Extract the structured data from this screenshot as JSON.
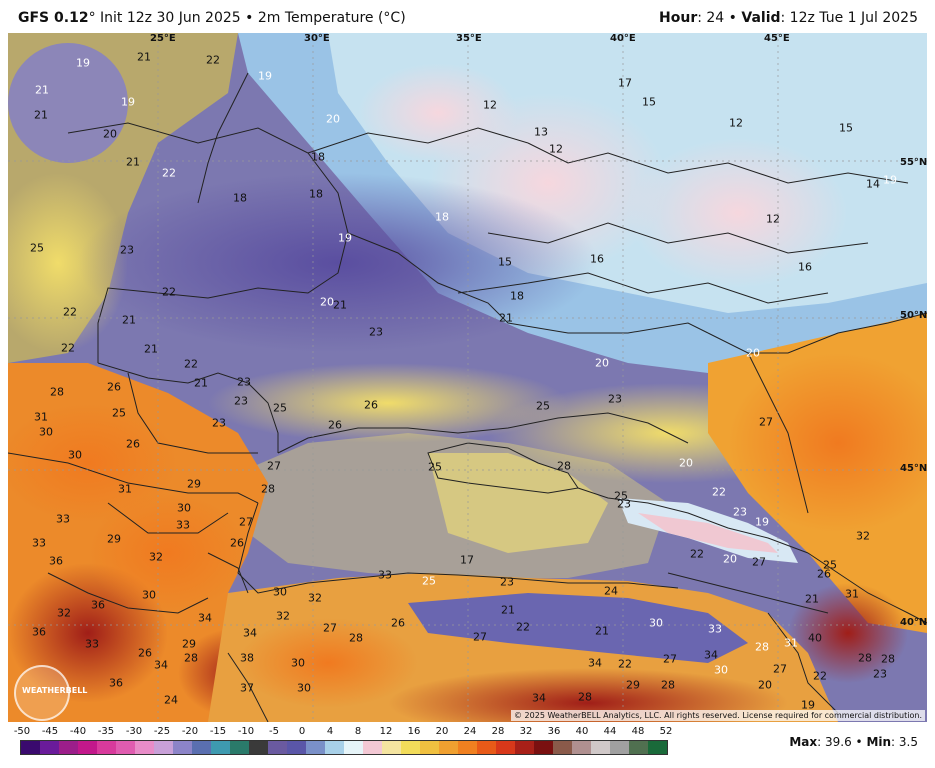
{
  "header": {
    "model": "GFS 0.12",
    "deg": "°",
    "init": " Init 12z 30 Jun 2025 • 2m Temperature (°C)",
    "hour_label": "Hour",
    "hour_value": ": 24 • ",
    "valid_label": "Valid",
    "valid_value": ": 12z Tue 1 Jul 2025"
  },
  "grid_labels": {
    "lon_25": "25°E",
    "lon_30": "30°E",
    "lon_35": "35°E",
    "lon_40": "40°E",
    "lon_45": "45°E",
    "lat_55": "55°N",
    "lat_50": "50°N",
    "lat_45": "45°N",
    "lat_40": "40°N"
  },
  "map": {
    "copyright": "© 2025 WeatherBELL Analytics, LLC. All rights reserved. License required for commercial distribution.",
    "logo_text": "WEATHERBELL"
  },
  "legend": {
    "ticks": [
      "-50",
      "-45",
      "-40",
      "-35",
      "-30",
      "-25",
      "-20",
      "-15",
      "-10",
      "-5",
      "0",
      "4",
      "8",
      "12",
      "16",
      "20",
      "24",
      "28",
      "32",
      "36",
      "40",
      "44",
      "48",
      "52"
    ],
    "colors": [
      "#3a0a6e",
      "#6a1b9a",
      "#9c1e8a",
      "#c2188b",
      "#d83a9c",
      "#e05cb0",
      "#e88cc8",
      "#c8a0d8",
      "#8c84c8",
      "#5a6fb0",
      "#3e9ab0",
      "#2a7a6a",
      "#3a3a3a",
      "#6a5aa0",
      "#5a56a8",
      "#7a90c8",
      "#a8d0e8",
      "#e6f4f8",
      "#f3c8d4",
      "#f4e4a0",
      "#f2dc5a",
      "#f0c040",
      "#f0a030",
      "#f08020",
      "#e85a18",
      "#d8381a",
      "#a82018",
      "#7a1010",
      "#8a5a4a",
      "#b09090",
      "#d0c8c8",
      "#a0a0a0",
      "#507050",
      "#1a6a3a"
    ],
    "max_label": "Max",
    "max_value": ": 39.6 • ",
    "min_label": "Min",
    "min_value": ": 3.5"
  },
  "temperature_labels": [
    "19",
    "21",
    "22",
    "21",
    "19",
    "19",
    "21",
    "20",
    "21",
    "22",
    "20",
    "18",
    "18",
    "18",
    "12",
    "13",
    "12",
    "17",
    "15",
    "12",
    "15",
    "14",
    "19",
    "12",
    "18",
    "19",
    "25",
    "23",
    "22",
    "15",
    "16",
    "16",
    "18",
    "21",
    "21",
    "20",
    "21",
    "22",
    "23",
    "22",
    "21",
    "21",
    "22",
    "20",
    "20",
    "28",
    "26",
    "23",
    "25",
    "23",
    "25",
    "26",
    "26",
    "31",
    "25",
    "30",
    "26",
    "23",
    "30",
    "27",
    "31",
    "29",
    "28",
    "25",
    "33",
    "30",
    "33",
    "27",
    "26",
    "29",
    "33",
    "32",
    "36",
    "36",
    "30",
    "32",
    "32",
    "36",
    "34",
    "34",
    "33",
    "38",
    "32",
    "26",
    "37",
    "36",
    "34",
    "27",
    "28",
    "30",
    "30",
    "24",
    "29",
    "28",
    "30",
    "33",
    "27",
    "26",
    "25",
    "17",
    "23",
    "24",
    "22",
    "21",
    "23",
    "21",
    "25",
    "28",
    "23",
    "22",
    "27",
    "26",
    "30",
    "21",
    "31",
    "32",
    "40",
    "31",
    "28",
    "22",
    "27",
    "27",
    "28",
    "28",
    "33",
    "34",
    "34",
    "34",
    "28",
    "29",
    "28",
    "19",
    "22",
    "20",
    "30",
    "23",
    "20",
    "20",
    "27",
    "25",
    "22",
    "23",
    "19"
  ]
}
